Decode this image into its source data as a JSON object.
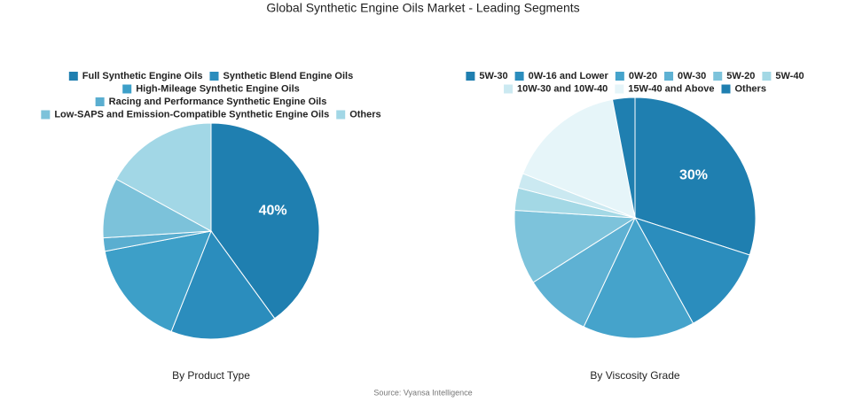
{
  "title": "Global Synthetic Engine Oils Market - Leading Segments",
  "source": "Source: Vyansa Intelligence",
  "chart_data": [
    {
      "type": "pie",
      "title": "By Product Type",
      "categories": [
        "Full Synthetic Engine Oils",
        "Synthetic Blend Engine Oils",
        "High-Mileage Synthetic Engine Oils",
        "Racing and Performance Synthetic Engine Oils",
        "Low-SAPS and Emission-Compatible Synthetic Engine Oils",
        "Others"
      ],
      "values": [
        40,
        16,
        16,
        2,
        9,
        17
      ],
      "value_labels": [
        "40%",
        null,
        null,
        null,
        null,
        null
      ],
      "colors": [
        "#1f7fb0",
        "#2b8dbd",
        "#3d9fc8",
        "#5aaed0",
        "#7cc2da",
        "#a2d7e6"
      ]
    },
    {
      "type": "pie",
      "title": "By Viscosity Grade",
      "categories": [
        "5W-30",
        "0W-16 and Lower",
        "0W-20",
        "0W-30",
        "5W-20",
        "5W-40",
        "10W-30 and 10W-40",
        "15W-40 and Above",
        "Others"
      ],
      "values": [
        30,
        12,
        15,
        9,
        10,
        3,
        2,
        16,
        3
      ],
      "value_labels": [
        "30%",
        null,
        null,
        null,
        null,
        null,
        null,
        null,
        null
      ],
      "colors": [
        "#1f7fb0",
        "#2b8dbd",
        "#45a3cb",
        "#5eb1d3",
        "#7dc3db",
        "#a3d8e5",
        "#cbe9f1",
        "#e6f5f9",
        "#1f7fb0"
      ]
    }
  ]
}
